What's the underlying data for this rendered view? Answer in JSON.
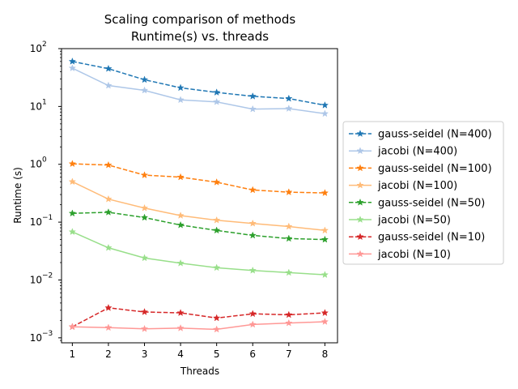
{
  "chart_data": {
    "type": "line",
    "title": [
      "Scaling comparison of methods",
      "Runtime(s) vs. threads"
    ],
    "xlabel": "Threads",
    "ylabel": "Runtime (s)",
    "yscale": "log",
    "xlim": [
      0.7,
      8.35
    ],
    "ylim": [
      0.00082,
      100
    ],
    "x": [
      1,
      2,
      3,
      4,
      5,
      6,
      7,
      8
    ],
    "xticks": [
      "1",
      "2",
      "3",
      "4",
      "5",
      "6",
      "7",
      "8"
    ],
    "yticks": [
      {
        "value": 0.001,
        "base": "10",
        "exp": "−3"
      },
      {
        "value": 0.01,
        "base": "10",
        "exp": "−2"
      },
      {
        "value": 0.1,
        "base": "10",
        "exp": "−1"
      },
      {
        "value": 1,
        "base": "10",
        "exp": "0"
      },
      {
        "value": 10,
        "base": "10",
        "exp": "1"
      },
      {
        "value": 100,
        "base": "10",
        "exp": "2"
      }
    ],
    "grid": false,
    "legend": "right-outside",
    "series": [
      {
        "name": "gauss-seidel (N=400)",
        "color": "#1f77b4",
        "dash": true,
        "values": [
          60,
          45,
          29,
          21,
          17.5,
          15,
          13.7,
          10.5
        ]
      },
      {
        "name": "jacobi (N=400)",
        "color": "#aec7e8",
        "dash": false,
        "values": [
          46,
          23,
          19,
          13,
          12,
          9,
          9.2,
          7.5
        ]
      },
      {
        "name": "gauss-seidel (N=100)",
        "color": "#ff7f0e",
        "dash": true,
        "values": [
          1.02,
          0.97,
          0.65,
          0.6,
          0.49,
          0.36,
          0.33,
          0.32
        ]
      },
      {
        "name": "jacobi (N=100)",
        "color": "#ffbb78",
        "dash": false,
        "values": [
          0.5,
          0.25,
          0.175,
          0.13,
          0.108,
          0.095,
          0.084,
          0.072
        ]
      },
      {
        "name": "gauss-seidel (N=50)",
        "color": "#2ca02c",
        "dash": true,
        "values": [
          0.142,
          0.148,
          0.12,
          0.089,
          0.072,
          0.059,
          0.052,
          0.05
        ]
      },
      {
        "name": "jacobi (N=50)",
        "color": "#98df8a",
        "dash": false,
        "values": [
          0.068,
          0.036,
          0.024,
          0.0195,
          0.0163,
          0.0146,
          0.0134,
          0.0123
        ]
      },
      {
        "name": "gauss-seidel (N=10)",
        "color": "#d62728",
        "dash": true,
        "values": [
          0.00155,
          0.0033,
          0.0028,
          0.0027,
          0.0022,
          0.0026,
          0.0025,
          0.0027
        ]
      },
      {
        "name": "jacobi (N=10)",
        "color": "#ff9896",
        "dash": false,
        "values": [
          0.00155,
          0.0015,
          0.00143,
          0.00147,
          0.0014,
          0.0017,
          0.0018,
          0.0019
        ]
      }
    ]
  }
}
